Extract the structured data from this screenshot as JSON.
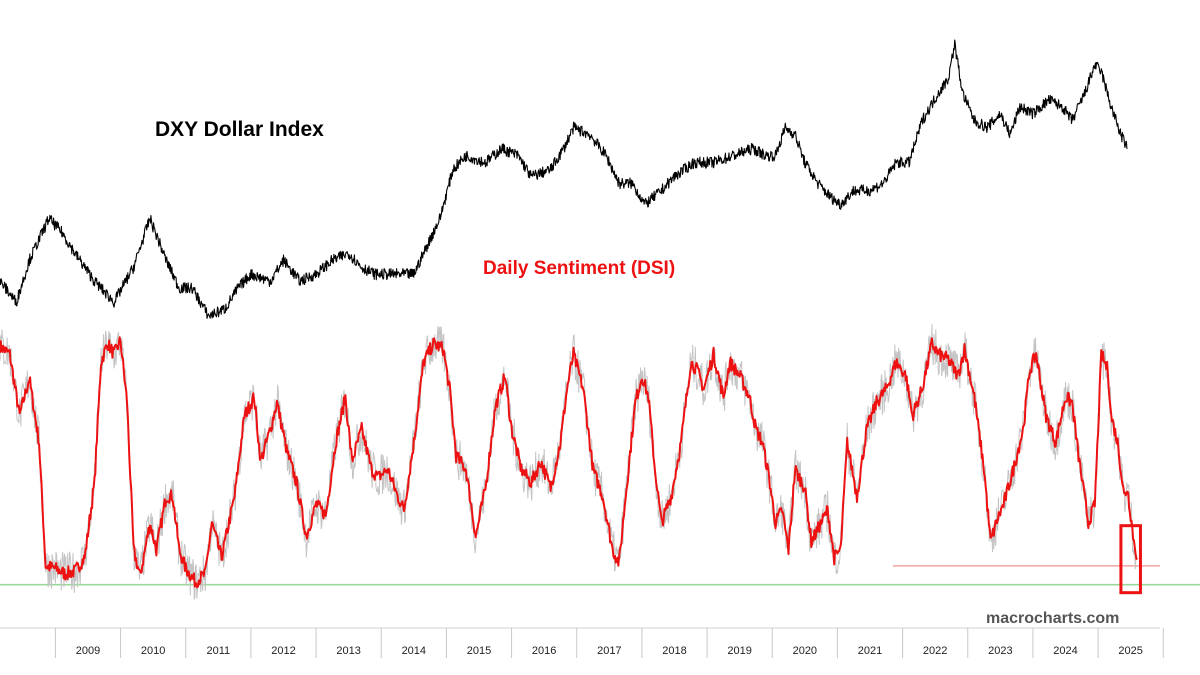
{
  "chart_data": {
    "type": "line",
    "title": "",
    "labels": {
      "dxy": "DXY Dollar Index",
      "dsi": "Daily Sentiment (DSI)",
      "watermark": "macrocharts.com"
    },
    "x_axis": {
      "ticks": [
        "2009",
        "2010",
        "2011",
        "2012",
        "2013",
        "2014",
        "2015",
        "2016",
        "2017",
        "2018",
        "2019",
        "2020",
        "2021",
        "2022",
        "2023",
        "2024",
        "2025"
      ],
      "range": [
        2008.15,
        2025.95
      ]
    },
    "series": [
      {
        "name": "DXY Dollar Index",
        "color": "#000000",
        "ylim": [
          72,
          115
        ],
        "points": [
          [
            2008.15,
            79
          ],
          [
            2008.4,
            76
          ],
          [
            2008.6,
            82
          ],
          [
            2008.9,
            88
          ],
          [
            2009.1,
            86
          ],
          [
            2009.3,
            83
          ],
          [
            2009.6,
            79
          ],
          [
            2009.9,
            76
          ],
          [
            2010.2,
            81
          ],
          [
            2010.45,
            88
          ],
          [
            2010.7,
            82
          ],
          [
            2010.9,
            78
          ],
          [
            2011.1,
            78
          ],
          [
            2011.35,
            74
          ],
          [
            2011.6,
            75
          ],
          [
            2011.8,
            78
          ],
          [
            2012.0,
            80
          ],
          [
            2012.3,
            79
          ],
          [
            2012.5,
            82
          ],
          [
            2012.75,
            79
          ],
          [
            2013.0,
            80
          ],
          [
            2013.25,
            82
          ],
          [
            2013.5,
            83
          ],
          [
            2013.7,
            81
          ],
          [
            2013.9,
            80
          ],
          [
            2014.3,
            80
          ],
          [
            2014.5,
            80
          ],
          [
            2014.7,
            84
          ],
          [
            2014.9,
            88
          ],
          [
            2015.1,
            95
          ],
          [
            2015.3,
            97
          ],
          [
            2015.6,
            96
          ],
          [
            2015.85,
            98
          ],
          [
            2016.1,
            97
          ],
          [
            2016.3,
            94
          ],
          [
            2016.6,
            95
          ],
          [
            2016.8,
            98
          ],
          [
            2016.95,
            101
          ],
          [
            2017.2,
            100
          ],
          [
            2017.45,
            97
          ],
          [
            2017.65,
            93
          ],
          [
            2017.85,
            93
          ],
          [
            2018.05,
            90
          ],
          [
            2018.3,
            92
          ],
          [
            2018.5,
            94
          ],
          [
            2018.8,
            96
          ],
          [
            2019.1,
            96
          ],
          [
            2019.4,
            97
          ],
          [
            2019.7,
            98
          ],
          [
            2019.9,
            97
          ],
          [
            2020.05,
            97
          ],
          [
            2020.2,
            101
          ],
          [
            2020.35,
            100
          ],
          [
            2020.5,
            96
          ],
          [
            2020.7,
            93
          ],
          [
            2020.9,
            91
          ],
          [
            2021.05,
            90
          ],
          [
            2021.25,
            92
          ],
          [
            2021.5,
            92
          ],
          [
            2021.7,
            93
          ],
          [
            2021.9,
            96
          ],
          [
            2022.1,
            96
          ],
          [
            2022.3,
            102
          ],
          [
            2022.55,
            106
          ],
          [
            2022.7,
            108
          ],
          [
            2022.8,
            113
          ],
          [
            2022.92,
            106
          ],
          [
            2023.1,
            102
          ],
          [
            2023.3,
            101
          ],
          [
            2023.5,
            103
          ],
          [
            2023.65,
            100
          ],
          [
            2023.8,
            104
          ],
          [
            2024.0,
            103
          ],
          [
            2024.25,
            105
          ],
          [
            2024.45,
            104
          ],
          [
            2024.6,
            102
          ],
          [
            2024.8,
            106
          ],
          [
            2024.95,
            110
          ],
          [
            2025.05,
            109
          ],
          [
            2025.2,
            104
          ],
          [
            2025.35,
            100
          ],
          [
            2025.45,
            98
          ]
        ]
      },
      {
        "name": "Daily Sentiment (DSI)",
        "color": "#ee1111",
        "shadow_color": "#c4c4c4",
        "ylim": [
          0,
          100
        ],
        "points": [
          [
            2008.15,
            91
          ],
          [
            2008.3,
            88
          ],
          [
            2008.45,
            65
          ],
          [
            2008.6,
            79
          ],
          [
            2008.75,
            55
          ],
          [
            2008.85,
            9
          ],
          [
            2009.0,
            8
          ],
          [
            2009.15,
            6
          ],
          [
            2009.3,
            7
          ],
          [
            2009.45,
            12
          ],
          [
            2009.6,
            40
          ],
          [
            2009.7,
            85
          ],
          [
            2009.8,
            92
          ],
          [
            2009.9,
            88
          ],
          [
            2010.0,
            93
          ],
          [
            2010.1,
            70
          ],
          [
            2010.2,
            15
          ],
          [
            2010.3,
            5
          ],
          [
            2010.45,
            25
          ],
          [
            2010.55,
            15
          ],
          [
            2010.7,
            35
          ],
          [
            2010.8,
            35
          ],
          [
            2010.9,
            15
          ],
          [
            2011.0,
            8
          ],
          [
            2011.15,
            3
          ],
          [
            2011.3,
            6
          ],
          [
            2011.4,
            25
          ],
          [
            2011.55,
            12
          ],
          [
            2011.75,
            35
          ],
          [
            2011.9,
            65
          ],
          [
            2012.05,
            72
          ],
          [
            2012.15,
            48
          ],
          [
            2012.3,
            60
          ],
          [
            2012.4,
            70
          ],
          [
            2012.55,
            52
          ],
          [
            2012.7,
            40
          ],
          [
            2012.85,
            20
          ],
          [
            2013.0,
            32
          ],
          [
            2013.15,
            28
          ],
          [
            2013.3,
            55
          ],
          [
            2013.45,
            72
          ],
          [
            2013.55,
            48
          ],
          [
            2013.7,
            60
          ],
          [
            2013.85,
            45
          ],
          [
            2013.95,
            42
          ],
          [
            2014.1,
            45
          ],
          [
            2014.25,
            35
          ],
          [
            2014.35,
            30
          ],
          [
            2014.5,
            55
          ],
          [
            2014.65,
            85
          ],
          [
            2014.8,
            92
          ],
          [
            2014.95,
            90
          ],
          [
            2015.05,
            75
          ],
          [
            2015.15,
            50
          ],
          [
            2015.3,
            45
          ],
          [
            2015.45,
            20
          ],
          [
            2015.6,
            38
          ],
          [
            2015.75,
            68
          ],
          [
            2015.9,
            80
          ],
          [
            2016.0,
            60
          ],
          [
            2016.15,
            45
          ],
          [
            2016.3,
            40
          ],
          [
            2016.45,
            48
          ],
          [
            2016.6,
            38
          ],
          [
            2016.75,
            55
          ],
          [
            2016.85,
            75
          ],
          [
            2016.95,
            88
          ],
          [
            2017.1,
            75
          ],
          [
            2017.25,
            45
          ],
          [
            2017.4,
            35
          ],
          [
            2017.55,
            15
          ],
          [
            2017.65,
            10
          ],
          [
            2017.75,
            35
          ],
          [
            2017.9,
            70
          ],
          [
            2018.0,
            80
          ],
          [
            2018.1,
            72
          ],
          [
            2018.2,
            45
          ],
          [
            2018.3,
            25
          ],
          [
            2018.45,
            35
          ],
          [
            2018.6,
            55
          ],
          [
            2018.75,
            85
          ],
          [
            2018.85,
            82
          ],
          [
            2018.95,
            75
          ],
          [
            2019.1,
            88
          ],
          [
            2019.25,
            72
          ],
          [
            2019.35,
            85
          ],
          [
            2019.5,
            80
          ],
          [
            2019.65,
            72
          ],
          [
            2019.75,
            60
          ],
          [
            2019.85,
            55
          ],
          [
            2019.95,
            42
          ],
          [
            2020.05,
            25
          ],
          [
            2020.15,
            30
          ],
          [
            2020.25,
            15
          ],
          [
            2020.35,
            45
          ],
          [
            2020.5,
            38
          ],
          [
            2020.6,
            18
          ],
          [
            2020.75,
            25
          ],
          [
            2020.85,
            30
          ],
          [
            2020.95,
            12
          ],
          [
            2021.05,
            15
          ],
          [
            2021.15,
            55
          ],
          [
            2021.3,
            35
          ],
          [
            2021.45,
            60
          ],
          [
            2021.6,
            70
          ],
          [
            2021.75,
            75
          ],
          [
            2021.9,
            85
          ],
          [
            2022.05,
            80
          ],
          [
            2022.15,
            65
          ],
          [
            2022.3,
            75
          ],
          [
            2022.45,
            92
          ],
          [
            2022.55,
            88
          ],
          [
            2022.7,
            86
          ],
          [
            2022.85,
            80
          ],
          [
            2022.95,
            90
          ],
          [
            2023.1,
            72
          ],
          [
            2023.25,
            45
          ],
          [
            2023.35,
            18
          ],
          [
            2023.45,
            26
          ],
          [
            2023.55,
            32
          ],
          [
            2023.7,
            45
          ],
          [
            2023.85,
            60
          ],
          [
            2023.95,
            82
          ],
          [
            2024.05,
            88
          ],
          [
            2024.2,
            65
          ],
          [
            2024.35,
            55
          ],
          [
            2024.5,
            72
          ],
          [
            2024.6,
            70
          ],
          [
            2024.7,
            50
          ],
          [
            2024.85,
            25
          ],
          [
            2024.95,
            32
          ],
          [
            2025.05,
            88
          ],
          [
            2025.15,
            82
          ],
          [
            2025.2,
            65
          ],
          [
            2025.3,
            55
          ],
          [
            2025.4,
            35
          ],
          [
            2025.45,
            38
          ],
          [
            2025.5,
            28
          ],
          [
            2025.55,
            18
          ],
          [
            2025.6,
            12
          ]
        ]
      }
    ],
    "reference_lines": [
      {
        "name": "dsi-oversold-line",
        "series": "Daily Sentiment (DSI)",
        "y": 2,
        "color": "#9ad89a"
      },
      {
        "name": "dsi-recent-low-line",
        "series": "Daily Sentiment (DSI)",
        "y": 9,
        "color": "#f5a3a3",
        "x_from": 2021.85,
        "x_to": 2025.95
      }
    ],
    "annotation_box": {
      "color": "#ee1111",
      "x_from": 2025.35,
      "x_to": 2025.65,
      "y_from": -1,
      "y_to": 24
    }
  }
}
